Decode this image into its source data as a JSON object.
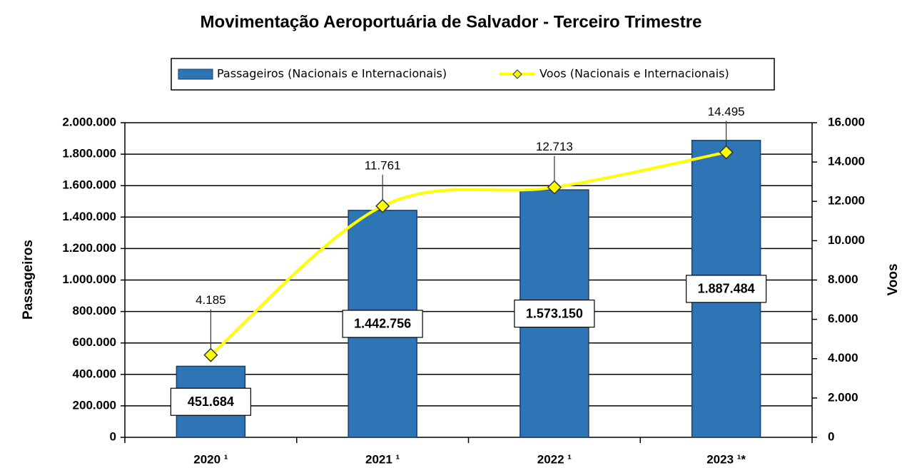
{
  "chart_data": {
    "type": "bar_line",
    "title": "Movimentação Aeroportuária de Salvador - Terceiro Trimestre",
    "ylabel": "Passageiros",
    "y2label": "Voos",
    "categories": [
      "2020 ¹",
      "2021 ¹",
      "2022 ¹",
      "2023 ¹*"
    ],
    "series": [
      {
        "name": "Passageiros (Nacionais e Internacionais)",
        "type": "bar",
        "color": "#2e75b6",
        "values": [
          451684,
          1442756,
          1573150,
          1887484
        ],
        "value_labels": [
          "451.684",
          "1.442.756",
          "1.573.150",
          "1.887.484"
        ]
      },
      {
        "name": "Voos (Nacionais e Internacionais)",
        "type": "line",
        "color": "#ffff00",
        "axis": "y2",
        "values": [
          4185,
          11761,
          12713,
          14495
        ],
        "value_labels": [
          "4.185",
          "11.761",
          "12.713",
          "14.495"
        ]
      }
    ],
    "ylim": [
      0,
      2000000
    ],
    "yticks": [
      0,
      {
        "value": 200000,
        "label": "200.000"
      },
      {
        "value": 400000,
        "label": "400.000"
      },
      {
        "value": 600000,
        "label": "600.000"
      },
      {
        "value": 800000,
        "label": "800.000"
      },
      {
        "value": 1000000,
        "label": "1.000.000"
      },
      {
        "value": 1200000,
        "label": "1.200.000"
      },
      {
        "value": 1400000,
        "label": "1.400.000"
      },
      {
        "value": 1600000,
        "label": "1.600.000"
      },
      {
        "value": 1800000,
        "label": "1.800.000"
      },
      {
        "value": 2000000,
        "label": "2.000.000"
      }
    ],
    "y2lim": [
      0,
      16000
    ],
    "y2ticks": [
      0,
      {
        "value": 2000,
        "label": "2.000"
      },
      {
        "value": 4000,
        "label": "4.000"
      },
      {
        "value": 6000,
        "label": "6.000"
      },
      {
        "value": 8000,
        "label": "8.000"
      },
      {
        "value": 10000,
        "label": "10.000"
      },
      {
        "value": 12000,
        "label": "12.000"
      },
      {
        "value": 14000,
        "label": "14.000"
      },
      {
        "value": 16000,
        "label": "16.000"
      }
    ],
    "grid": true,
    "legend": "top"
  }
}
